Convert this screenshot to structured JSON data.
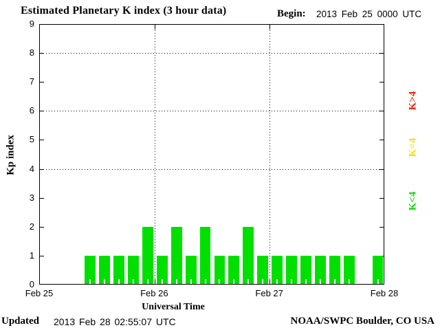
{
  "header": {
    "title": "Estimated Planetary K index (3 hour data)",
    "begin_label": "Begin:",
    "begin_value": "2013 Feb 25 0000 UTC"
  },
  "footer": {
    "updated_label": "Updated",
    "updated_value": "2013 Feb 28 02:55:07 UTC",
    "source": "NOAA/SWPC Boulder, CO USA"
  },
  "chart_data": {
    "type": "bar",
    "title": "Estimated Planetary K index (3 hour data)",
    "xlabel": "Universal Time",
    "ylabel": "Kp index",
    "begin": "2013 Feb 25 0000 UTC",
    "slot_hours": 3,
    "ylim": [
      0,
      9
    ],
    "y_ticks": [
      0,
      1,
      2,
      3,
      4,
      5,
      6,
      7,
      8,
      9
    ],
    "gridlines_y": [
      4,
      6,
      8
    ],
    "grid": "dotted",
    "x_tick_labels": [
      "Feb 25",
      "Feb 26",
      "Feb 27",
      "Feb 28"
    ],
    "day_boundary_slots": [
      8,
      16
    ],
    "values": [
      0,
      0,
      0,
      1,
      1,
      1,
      1,
      2,
      1,
      2,
      1,
      2,
      1,
      1,
      2,
      1,
      1,
      1,
      1,
      1,
      1,
      1,
      0,
      1
    ],
    "values_by_day": {
      "Feb 25": [
        0,
        0,
        0,
        1,
        1,
        1,
        1,
        2
      ],
      "Feb 26": [
        1,
        2,
        1,
        2,
        1,
        1,
        2,
        1
      ],
      "Feb 27": [
        1,
        1,
        1,
        1,
        1,
        1,
        0,
        1
      ]
    },
    "thresholds": {
      "k_lt_4_color": "#00E000",
      "k_eq_4_color": "#FFDD00",
      "k_gt_4_color": "#FF1A00"
    },
    "legend": [
      {
        "label": "K>4",
        "color": "#FF1A00"
      },
      {
        "label": "K=4",
        "color": "#FFDD00"
      },
      {
        "label": "K<4",
        "color": "#00E000"
      }
    ],
    "legend_position": "right",
    "axis_color": "#000000"
  }
}
